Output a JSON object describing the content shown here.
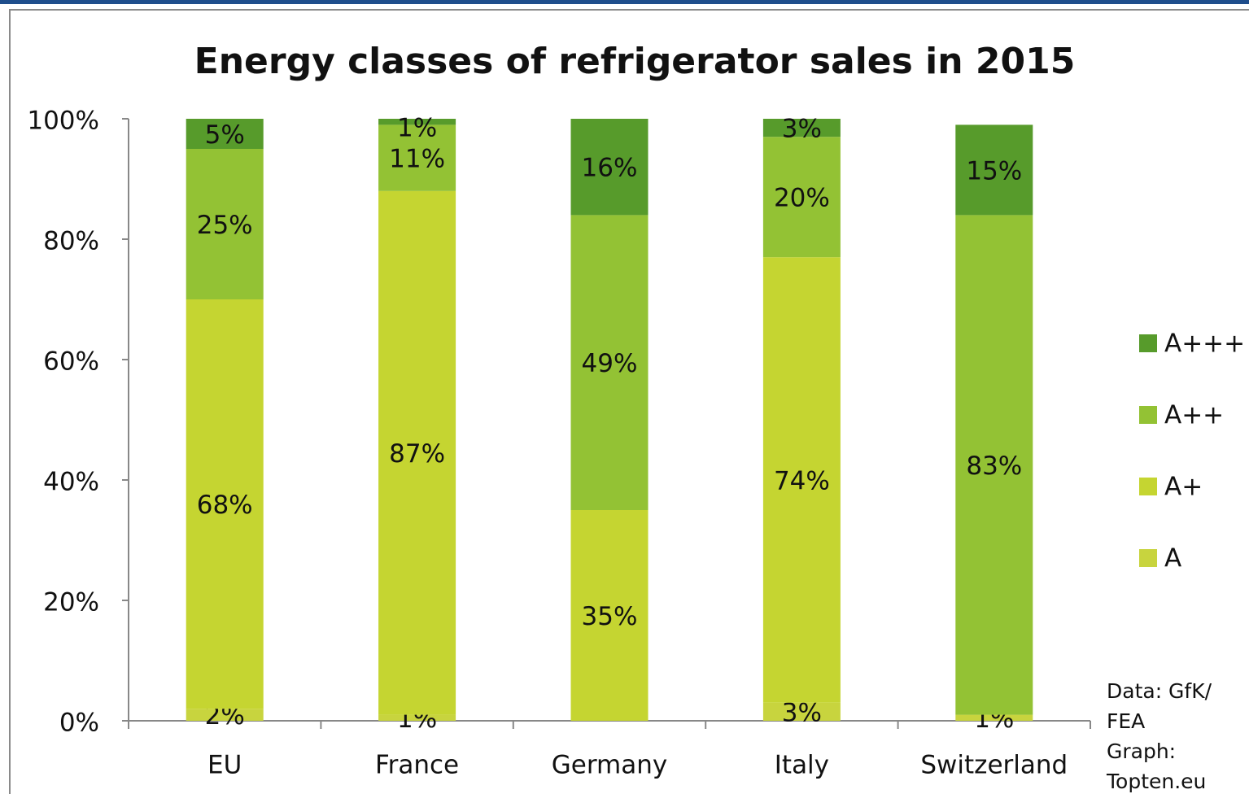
{
  "chart_data": {
    "type": "stacked_bar",
    "title": "Energy classes of refrigerator sales in  2015",
    "categories": [
      "EU",
      "France",
      "Germany",
      "Italy",
      "Switzerland"
    ],
    "series": [
      {
        "name": "A",
        "color": "#c8d43e",
        "values": [
          2,
          1,
          null,
          3,
          1
        ],
        "value_labels": [
          "2%",
          "1%",
          null,
          "3%",
          "1%"
        ]
      },
      {
        "name": "A+",
        "color": "#c5d531",
        "values": [
          68,
          87,
          35,
          74,
          null
        ],
        "value_labels": [
          "68%",
          "87%",
          "35%",
          "74%",
          null
        ]
      },
      {
        "name": "A++",
        "color": "#93c234",
        "values": [
          25,
          11,
          49,
          20,
          83
        ],
        "value_labels": [
          "25%",
          "11%",
          "49%",
          "20%",
          "83%"
        ]
      },
      {
        "name": "A+++",
        "color": "#579b2b",
        "values": [
          5,
          1,
          16,
          3,
          15
        ],
        "value_labels": [
          "5%",
          "1%",
          "16%",
          "3%",
          "15%"
        ]
      }
    ],
    "ylim": [
      0,
      100
    ],
    "yticks": [
      {
        "value": 0,
        "label": "0%"
      },
      {
        "value": 20,
        "label": "20%"
      },
      {
        "value": 40,
        "label": "40%"
      },
      {
        "value": 60,
        "label": "60%"
      },
      {
        "value": 80,
        "label": "80%"
      },
      {
        "value": 100,
        "label": "100%"
      }
    ],
    "legend": "right",
    "note": [
      "Data: GfK/",
      "FEA",
      "Graph:",
      "Topten.eu"
    ]
  }
}
